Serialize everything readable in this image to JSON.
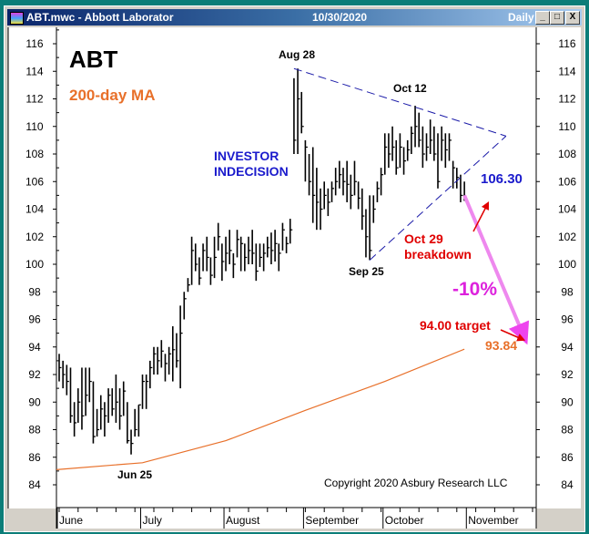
{
  "window": {
    "title": "ABT.mwc - Abbott Laborator",
    "date": "10/30/2020",
    "period": "Daily",
    "buttons": {
      "minimize": "_",
      "maximize": "□",
      "close": "X"
    }
  },
  "colors": {
    "bars": "#000000",
    "ma": "#e8702a",
    "trendline": "#1a1aa8",
    "arrow": "#ee88ee",
    "annotation_red": "#e00000",
    "annotation_blue": "#1a1acc",
    "frame": "#0b7d78"
  },
  "chart_data": {
    "type": "ohlc-bar",
    "title": "ABT",
    "ma_label": "200-day MA",
    "ylim": [
      83,
      117
    ],
    "y_ticks": [
      84,
      86,
      88,
      90,
      92,
      94,
      96,
      98,
      100,
      102,
      104,
      106,
      108,
      110,
      112,
      114,
      116
    ],
    "x_months": [
      "June",
      "July",
      "August",
      "September",
      "October",
      "November"
    ],
    "month_start_index": [
      0,
      22,
      44,
      65,
      86,
      108
    ],
    "bars_hlc": [
      [
        93.5,
        91.5,
        92.5
      ],
      [
        93,
        91,
        92
      ],
      [
        92.7,
        90.5,
        91.5
      ],
      [
        92.5,
        88.5,
        89
      ],
      [
        90,
        87.5,
        88.5
      ],
      [
        91,
        88.5,
        90
      ],
      [
        92.5,
        88,
        89
      ],
      [
        92.5,
        89,
        90.5
      ],
      [
        92.5,
        90,
        91.5
      ],
      [
        91.5,
        87,
        87.5
      ],
      [
        89.5,
        87.5,
        88
      ],
      [
        90.5,
        88,
        89.5
      ],
      [
        90,
        87.5,
        89
      ],
      [
        91,
        88.5,
        90.5
      ],
      [
        91,
        89,
        89.5
      ],
      [
        92,
        88.5,
        90
      ],
      [
        91,
        88,
        89
      ],
      [
        91.5,
        89,
        90.8
      ],
      [
        90,
        87,
        87.2
      ],
      [
        88,
        86.2,
        87
      ],
      [
        89.5,
        87.5,
        88
      ],
      [
        89.8,
        87.5,
        89.8
      ],
      [
        92,
        89.5,
        91.5
      ],
      [
        92,
        89.5,
        91.5
      ],
      [
        93,
        91,
        92.5
      ],
      [
        94,
        92,
        93.5
      ],
      [
        94,
        92,
        93
      ],
      [
        94.5,
        92.5,
        93.7
      ],
      [
        93.5,
        91.5,
        92.8
      ],
      [
        94,
        92,
        93.5
      ],
      [
        95.5,
        91.5,
        93.8
      ],
      [
        95,
        92.5,
        93
      ],
      [
        97,
        91,
        95
      ],
      [
        98,
        96,
        97.5
      ],
      [
        99,
        98,
        98.5
      ],
      [
        102,
        98.5,
        101
      ],
      [
        101.5,
        99.5,
        100
      ],
      [
        100.5,
        98.5,
        99
      ],
      [
        101.5,
        99.5,
        101
      ],
      [
        102,
        99.5,
        100.5
      ],
      [
        100.5,
        98.5,
        99.2
      ],
      [
        102,
        99,
        100.5
      ],
      [
        103,
        101,
        102
      ],
      [
        101.5,
        98.8,
        100.2
      ],
      [
        102,
        99.5,
        100.8
      ],
      [
        102.5,
        100,
        101
      ],
      [
        100.8,
        99,
        100
      ],
      [
        102.5,
        100.5,
        101.8
      ],
      [
        102,
        99.5,
        101.5
      ],
      [
        101.5,
        99.5,
        100.5
      ],
      [
        102,
        100,
        101
      ],
      [
        102.5,
        100,
        100.8
      ],
      [
        101.5,
        98.8,
        99.5
      ],
      [
        101.5,
        99.8,
        100.5
      ],
      [
        101.5,
        99.5,
        100.8
      ],
      [
        102,
        100.5,
        101.2
      ],
      [
        102.3,
        100,
        101
      ],
      [
        102.5,
        100.2,
        101.5
      ],
      [
        101.5,
        99.5,
        100.8
      ],
      [
        103,
        101,
        102.5
      ],
      [
        102,
        100.8,
        101.5
      ],
      [
        103.3,
        101.5,
        102.5
      ],
      [
        113.5,
        108,
        109
      ],
      [
        114.2,
        108,
        112
      ],
      [
        112.5,
        109.5,
        110
      ],
      [
        109,
        106,
        108.5
      ],
      [
        108,
        105,
        106
      ],
      [
        108.5,
        103,
        105
      ],
      [
        107,
        102.5,
        104.5
      ],
      [
        105.5,
        102.5,
        104
      ],
      [
        106,
        104,
        105
      ],
      [
        105.5,
        103.5,
        104.5
      ],
      [
        106,
        104.5,
        105.5
      ],
      [
        107,
        105,
        106
      ],
      [
        107.5,
        105.5,
        106.5
      ],
      [
        107,
        105,
        106
      ],
      [
        107.5,
        104.5,
        105.8
      ],
      [
        106.5,
        104,
        105
      ],
      [
        107.5,
        105,
        106
      ],
      [
        106,
        104,
        104.8
      ],
      [
        105.5,
        102.5,
        103.5
      ],
      [
        104,
        100.5,
        102
      ],
      [
        105,
        100.3,
        101
      ],
      [
        105,
        103,
        104
      ],
      [
        106,
        104.5,
        105.5
      ],
      [
        107,
        105,
        106.5
      ],
      [
        109.5,
        106.5,
        108.5
      ],
      [
        109.5,
        107,
        108
      ],
      [
        110,
        107.5,
        108.5
      ],
      [
        109,
        106.5,
        107
      ],
      [
        109.5,
        107,
        108.5
      ],
      [
        108.5,
        106.5,
        107.5
      ],
      [
        109,
        107.5,
        108.3
      ],
      [
        110,
        108,
        109.5
      ],
      [
        111.5,
        108.5,
        110
      ],
      [
        111,
        108.5,
        109
      ],
      [
        110,
        107,
        108
      ],
      [
        109.5,
        107.5,
        108.5
      ],
      [
        110.5,
        108,
        109
      ],
      [
        110,
        107.5,
        108
      ],
      [
        109.5,
        105.5,
        106
      ],
      [
        110,
        107.5,
        109
      ],
      [
        109.5,
        107,
        108.3
      ],
      [
        109.5,
        107.5,
        109
      ],
      [
        107.5,
        105.5,
        107
      ],
      [
        107,
        105.5,
        106.3
      ],
      [
        106.5,
        104.5,
        105
      ],
      [
        106,
        104.6,
        104.8
      ]
    ],
    "ma_200": {
      "index": [
        0,
        22,
        44,
        65,
        86,
        107
      ],
      "value": [
        85.1,
        85.6,
        87.2,
        89.4,
        91.5,
        93.84
      ]
    },
    "trendlines": [
      {
        "from": [
          62,
          114.2
        ],
        "to": [
          118,
          109.3
        ]
      },
      {
        "from": [
          82,
          100.3
        ],
        "to": [
          118,
          109.3
        ]
      }
    ],
    "projection": {
      "from": [
        107,
        105
      ],
      "to": [
        123,
        94.5
      ]
    },
    "annotations": {
      "aug28": "Aug 28",
      "oct12": "Oct 12",
      "sep25": "Sep 25",
      "jun25": "Jun 25",
      "indecision_1": "INVESTOR",
      "indecision_2": "INDECISION",
      "breakdown_1": "Oct 29",
      "breakdown_2": "breakdown",
      "level": "106.30",
      "pct": "-10%",
      "target": "94.00 target",
      "ma_value": "93.84",
      "copyright": "Copyright 2020 Asbury Research LLC"
    }
  }
}
